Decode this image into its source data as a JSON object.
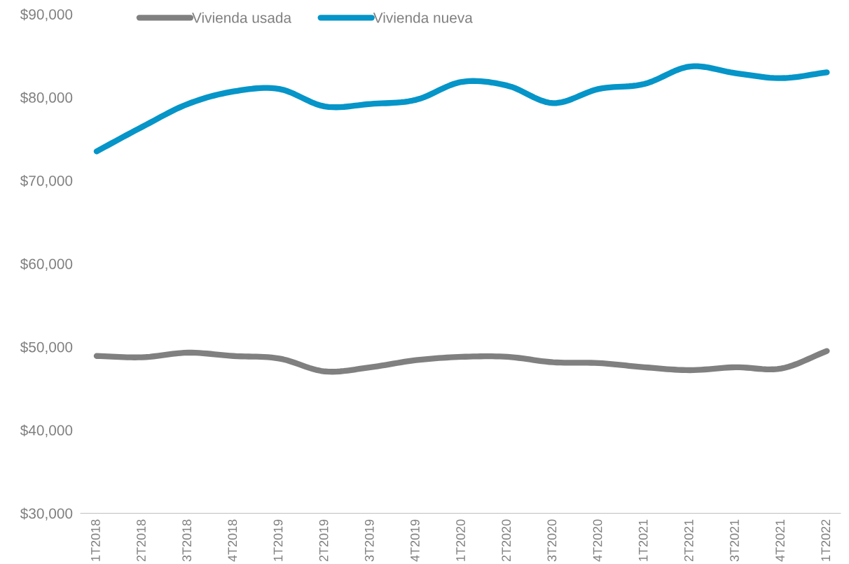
{
  "chart_data": {
    "type": "line",
    "categories": [
      "1T2018",
      "2T2018",
      "3T2018",
      "4T2018",
      "1T2019",
      "2T2019",
      "3T2019",
      "4T2019",
      "1T2020",
      "2T2020",
      "3T2020",
      "4T2020",
      "1T2021",
      "2T2021",
      "3T2021",
      "4T2021",
      "1T2022"
    ],
    "series": [
      {
        "name": "Vivienda usada",
        "color": "#808080",
        "values": [
          48900,
          48750,
          49300,
          48900,
          48600,
          47050,
          47550,
          48400,
          48800,
          48800,
          48150,
          48050,
          47550,
          47200,
          47550,
          47400,
          49500
        ]
      },
      {
        "name": "Vivienda nueva",
        "color": "#0595c8",
        "values": [
          73500,
          76450,
          79200,
          80700,
          81000,
          78900,
          79200,
          79700,
          81850,
          81400,
          79300,
          81000,
          81600,
          83700,
          82900,
          82300,
          83000
        ]
      }
    ],
    "ylim": [
      30000,
      90000
    ],
    "yticks": [
      {
        "value": 30000,
        "label": "$30,000"
      },
      {
        "value": 40000,
        "label": "$40,000"
      },
      {
        "value": 50000,
        "label": "$50,000"
      },
      {
        "value": 60000,
        "label": "$60,000"
      },
      {
        "value": 70000,
        "label": "$70,000"
      },
      {
        "value": 80000,
        "label": "$80,000"
      },
      {
        "value": 90000,
        "label": "$90,000"
      }
    ],
    "grid": false,
    "legend": "top",
    "marker": "none",
    "line_style": "solid"
  }
}
